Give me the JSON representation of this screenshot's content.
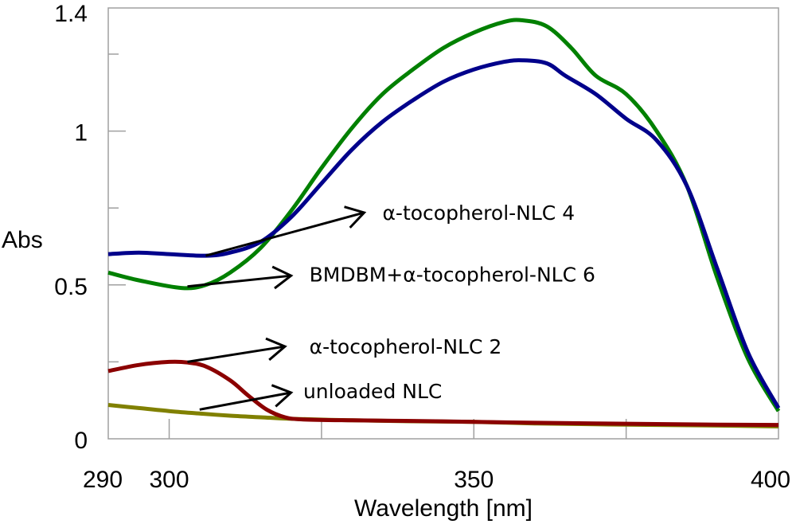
{
  "chart_data": {
    "type": "line",
    "title": "",
    "xlabel": "Wavelength [nm]",
    "ylabel": "Abs",
    "xlim": [
      290,
      400
    ],
    "ylim": [
      0,
      1.4
    ],
    "grid": false,
    "x_ticks": [
      290,
      300,
      350,
      400
    ],
    "x_tick_labels": [
      "290",
      "300",
      "350",
      "400"
    ],
    "x_minor_ticks": [
      300,
      325,
      350,
      375
    ],
    "y_ticks": [
      0,
      0.5,
      1,
      1.4
    ],
    "y_tick_labels": [
      "0",
      "0.5",
      "1",
      "1.4"
    ],
    "y_minor_ticks": [
      0.25,
      0.75,
      1.25
    ],
    "series": [
      {
        "name": "α-tocopherol-NLC 4",
        "color": "#00008b",
        "x": [
          290,
          295,
          300,
          306,
          310,
          315,
          320,
          325,
          330,
          335,
          340,
          345,
          350,
          355,
          358,
          362,
          365,
          370,
          375,
          380,
          385,
          390,
          395,
          400
        ],
        "y": [
          0.6,
          0.605,
          0.6,
          0.595,
          0.605,
          0.64,
          0.72,
          0.83,
          0.94,
          1.03,
          1.1,
          1.16,
          1.2,
          1.225,
          1.23,
          1.22,
          1.18,
          1.12,
          1.04,
          0.97,
          0.82,
          0.55,
          0.28,
          0.1
        ]
      },
      {
        "name": "BMDBM+α-tocopherol-NLC 6",
        "color": "#008000",
        "x": [
          290,
          295,
          302,
          306,
          310,
          315,
          320,
          325,
          330,
          335,
          340,
          345,
          350,
          355,
          358,
          362,
          366,
          370,
          375,
          380,
          385,
          390,
          395,
          400
        ],
        "y": [
          0.54,
          0.515,
          0.49,
          0.5,
          0.54,
          0.62,
          0.74,
          0.88,
          1.01,
          1.12,
          1.2,
          1.27,
          1.32,
          1.355,
          1.36,
          1.34,
          1.27,
          1.18,
          1.12,
          1.0,
          0.82,
          0.52,
          0.26,
          0.09
        ]
      },
      {
        "name": "α-tocopherol-NLC 2",
        "color": "#8b0000",
        "x": [
          290,
          295,
          300,
          303,
          306,
          310,
          313,
          316,
          319,
          322,
          330,
          340,
          350,
          360,
          370,
          380,
          390,
          400
        ],
        "y": [
          0.22,
          0.24,
          0.25,
          0.248,
          0.235,
          0.19,
          0.14,
          0.095,
          0.07,
          0.063,
          0.06,
          0.058,
          0.055,
          0.052,
          0.05,
          0.048,
          0.046,
          0.045
        ]
      },
      {
        "name": "unloaded NLC",
        "color": "#808000",
        "x": [
          290,
          295,
          300,
          305,
          310,
          315,
          320,
          330,
          340,
          350,
          360,
          370,
          380,
          390,
          400
        ],
        "y": [
          0.11,
          0.1,
          0.09,
          0.082,
          0.075,
          0.07,
          0.065,
          0.06,
          0.057,
          0.055,
          0.05,
          0.047,
          0.045,
          0.043,
          0.04
        ]
      }
    ],
    "annotations": [
      {
        "text": "α-tocopherol-NLC 4",
        "series": "α-tocopherol-NLC 4",
        "arrow_from": [
          306,
          0.595
        ],
        "arrow_to": [
          332,
          0.735
        ],
        "text_at": [
          335,
          0.735
        ]
      },
      {
        "text": "BMDBM+α-tocopherol-NLC 6",
        "series": "BMDBM+α-tocopherol-NLC 6",
        "arrow_from": [
          303,
          0.495
        ],
        "arrow_to": [
          320,
          0.53
        ],
        "text_at": [
          323,
          0.535
        ]
      },
      {
        "text": "α-tocopherol-NLC 2",
        "series": "α-tocopherol-NLC 2",
        "arrow_from": [
          303,
          0.25
        ],
        "arrow_to": [
          319,
          0.3
        ],
        "text_at": [
          323,
          0.3
        ]
      },
      {
        "text": "unloaded NLC",
        "series": "unloaded NLC",
        "arrow_from": [
          305,
          0.095
        ],
        "arrow_to": [
          320,
          0.15
        ],
        "text_at": [
          322,
          0.155
        ]
      }
    ]
  }
}
